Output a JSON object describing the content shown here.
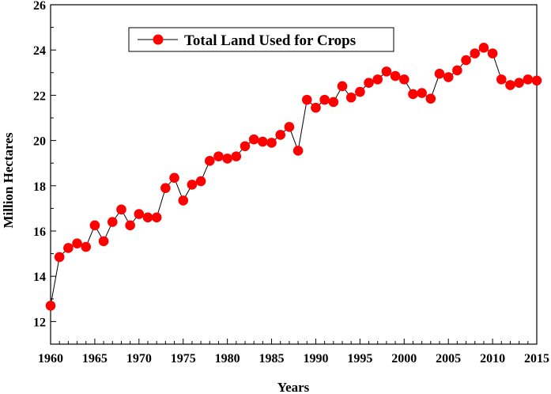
{
  "chart_data": {
    "type": "line",
    "title": "",
    "xlabel": "Years",
    "ylabel": "Million Hectares",
    "xlim": [
      1960,
      2015
    ],
    "ylim": [
      11,
      26
    ],
    "x_ticks": [
      1960,
      1965,
      1970,
      1975,
      1980,
      1985,
      1990,
      1995,
      2000,
      2005,
      2010,
      2015
    ],
    "y_ticks": [
      12,
      14,
      16,
      18,
      20,
      22,
      24,
      26
    ],
    "grid": false,
    "legend_position": "top-center",
    "series": [
      {
        "name": "Total Land Used for Crops",
        "color": "#ff0000",
        "line_color": "#000000",
        "marker": "circle",
        "x": [
          1960,
          1961,
          1962,
          1963,
          1964,
          1965,
          1966,
          1967,
          1968,
          1969,
          1970,
          1971,
          1972,
          1973,
          1974,
          1975,
          1976,
          1977,
          1978,
          1979,
          1980,
          1981,
          1982,
          1983,
          1984,
          1985,
          1986,
          1987,
          1988,
          1989,
          1990,
          1991,
          1992,
          1993,
          1994,
          1995,
          1996,
          1997,
          1998,
          1999,
          2000,
          2001,
          2002,
          2003,
          2004,
          2005,
          2006,
          2007,
          2008,
          2009,
          2010,
          2011,
          2012,
          2013,
          2014,
          2015
        ],
        "y": [
          12.7,
          14.85,
          15.25,
          15.45,
          15.3,
          16.25,
          15.55,
          16.4,
          16.95,
          16.25,
          16.75,
          16.6,
          16.6,
          17.9,
          18.35,
          17.35,
          18.05,
          18.2,
          19.1,
          19.3,
          19.2,
          19.3,
          19.75,
          20.05,
          19.95,
          19.9,
          20.25,
          20.6,
          19.55,
          21.8,
          21.45,
          21.8,
          21.7,
          22.4,
          21.9,
          22.15,
          22.55,
          22.7,
          23.05,
          22.85,
          22.7,
          22.05,
          22.1,
          21.85,
          22.95,
          22.8,
          23.1,
          23.55,
          23.85,
          24.1,
          23.85,
          22.7,
          22.45,
          22.55,
          22.7,
          22.65
        ]
      }
    ]
  }
}
